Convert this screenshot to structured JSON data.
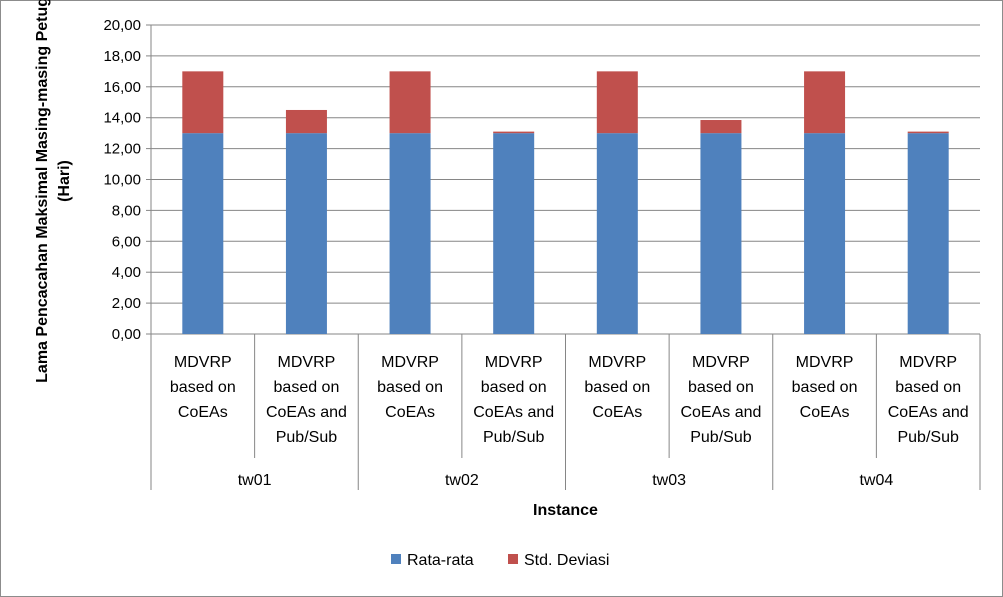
{
  "chart_data": {
    "type": "bar",
    "stacked": true,
    "title": "",
    "xlabel": "Instance",
    "ylabel_lines": [
      "Lama Pencacahan Maksimal Masing-masing Petugas",
      "(Hari)"
    ],
    "ylim": [
      0,
      20
    ],
    "yticks": [
      "0,00",
      "2,00",
      "4,00",
      "6,00",
      "8,00",
      "10,00",
      "12,00",
      "14,00",
      "16,00",
      "18,00",
      "20,00"
    ],
    "grid": true,
    "legend_position": "bottom",
    "groups": [
      "tw01",
      "tw02",
      "tw03",
      "tw04"
    ],
    "categories": [
      [
        "MDVRP",
        "based on",
        "CoEAs"
      ],
      [
        "MDVRP",
        "based on",
        "CoEAs and",
        "Pub/Sub"
      ],
      [
        "MDVRP",
        "based on",
        "CoEAs"
      ],
      [
        "MDVRP",
        "based on",
        "CoEAs and",
        "Pub/Sub"
      ],
      [
        "MDVRP",
        "based on",
        "CoEAs"
      ],
      [
        "MDVRP",
        "based on",
        "CoEAs and",
        "Pub/Sub"
      ],
      [
        "MDVRP",
        "based on",
        "CoEAs"
      ],
      [
        "MDVRP",
        "based on",
        "CoEAs and",
        "Pub/Sub"
      ]
    ],
    "series": [
      {
        "name": "Rata-rata",
        "color": "#4f81bd",
        "values": [
          13,
          13,
          13,
          13,
          13,
          13,
          13,
          13
        ]
      },
      {
        "name": "Std. Deviasi",
        "color": "#c0504d",
        "values": [
          4,
          1.5,
          4,
          0.1,
          4,
          0.85,
          4,
          0.1
        ]
      }
    ]
  }
}
